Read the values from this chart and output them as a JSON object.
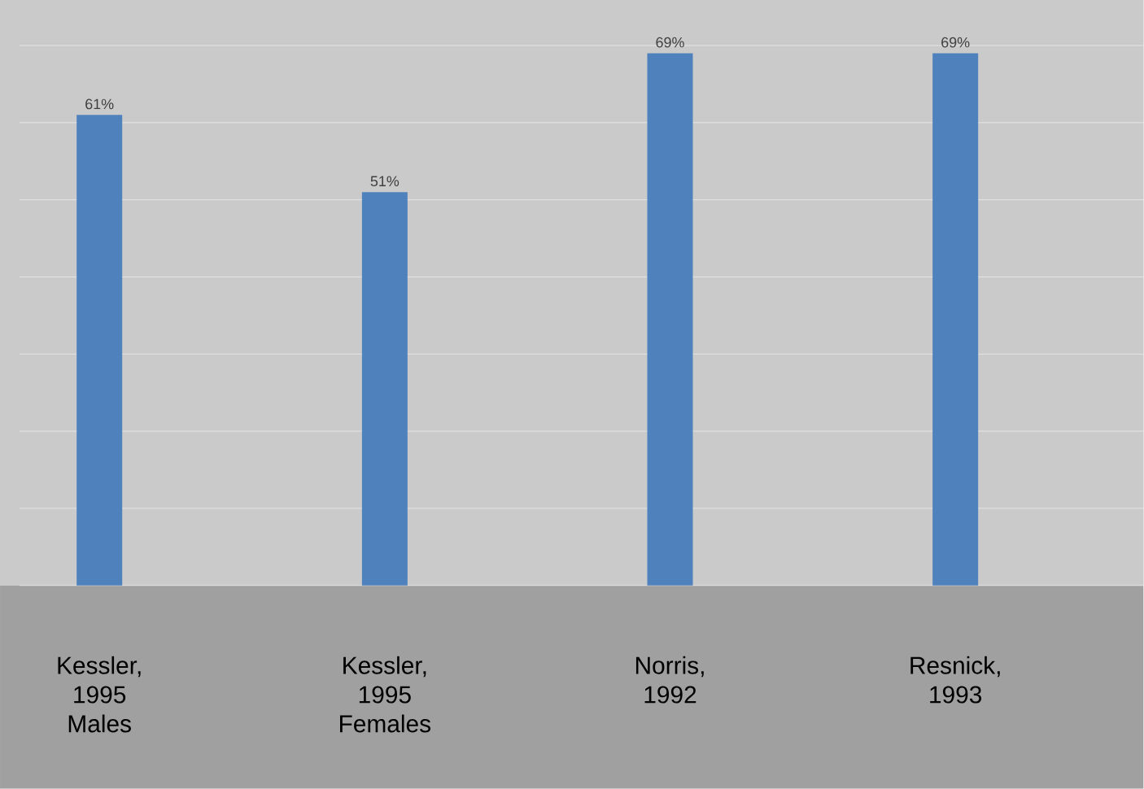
{
  "chart_data": {
    "type": "bar",
    "categories": [
      "Kessler, 1995 Males",
      "Kessler, 1995 Females",
      "Norris, 1992",
      "Resnick, 1993"
    ],
    "values": [
      61,
      51,
      69,
      69
    ],
    "value_labels": [
      "61%",
      "51%",
      "69%",
      "69%"
    ],
    "color": "#4f81bd",
    "ylim": [
      0,
      70
    ],
    "yticks": [
      0,
      10,
      20,
      30,
      40,
      50,
      60,
      70
    ],
    "grid": "y",
    "tick_labels": "x"
  }
}
